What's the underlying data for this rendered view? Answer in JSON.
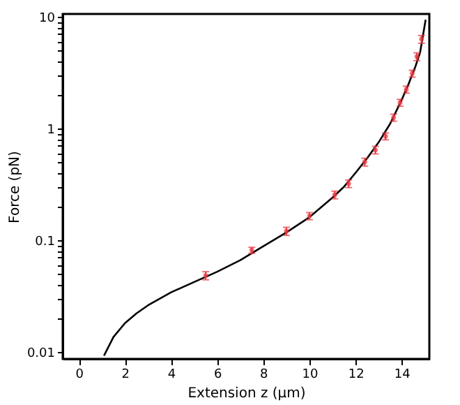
{
  "chart_data": {
    "type": "scatter",
    "xlabel": "Extension z (μm)",
    "ylabel": "Force (pN)",
    "log": "y",
    "grid": false,
    "xlim": [
      -0.7,
      15.2
    ],
    "xticks": [
      0,
      2,
      4,
      6,
      8,
      10,
      12,
      14
    ],
    "ylim": [
      0.0086,
      10.6
    ],
    "yticks": [
      {
        "value": 0.01,
        "label": "0.01"
      },
      {
        "value": 0.02,
        "label": null
      },
      {
        "value": 0.03,
        "label": null
      },
      {
        "value": 0.04,
        "label": null
      },
      {
        "value": 0.05,
        "label": null
      },
      {
        "value": 0.06,
        "label": null
      },
      {
        "value": 0.07,
        "label": null
      },
      {
        "value": 0.08,
        "label": null
      },
      {
        "value": 0.09,
        "label": null
      },
      {
        "value": 0.1,
        "label": "0.1"
      },
      {
        "value": 0.2,
        "label": null
      },
      {
        "value": 0.3,
        "label": null
      },
      {
        "value": 0.4,
        "label": null
      },
      {
        "value": 0.5,
        "label": null
      },
      {
        "value": 0.6,
        "label": null
      },
      {
        "value": 0.7,
        "label": null
      },
      {
        "value": 0.8,
        "label": null
      },
      {
        "value": 0.9,
        "label": null
      },
      {
        "value": 1,
        "label": "1"
      },
      {
        "value": 2,
        "label": null
      },
      {
        "value": 3,
        "label": null
      },
      {
        "value": 4,
        "label": null
      },
      {
        "value": 5,
        "label": null
      },
      {
        "value": 6,
        "label": null
      },
      {
        "value": 7,
        "label": null
      },
      {
        "value": 8,
        "label": null
      },
      {
        "value": 9,
        "label": null
      },
      {
        "value": 10,
        "label": "10"
      }
    ],
    "series": [
      {
        "type": "line",
        "color": "#000000",
        "marker": "none",
        "line_style": "solid",
        "x": [
          1.09,
          1.5,
          2,
          2.5,
          3,
          4,
          5,
          6,
          7,
          8,
          9,
          10,
          11,
          11.5,
          12,
          12.5,
          13,
          13.5,
          14,
          14.3,
          14.6,
          14.8,
          15.04
        ],
        "values": [
          0.0092,
          0.0135,
          0.018,
          0.022,
          0.026,
          0.034,
          0.042,
          0.052,
          0.066,
          0.088,
          0.117,
          0.16,
          0.24,
          0.3,
          0.4,
          0.54,
          0.75,
          1.1,
          1.8,
          2.5,
          3.6,
          4.8,
          9.4
        ]
      },
      {
        "type": "scatter",
        "color": "#e8363f",
        "marker": "circle",
        "x": [
          5.5,
          7.5,
          9.0,
          10.0,
          11.1,
          11.7,
          12.4,
          12.86,
          13.3,
          13.65,
          13.93,
          14.2,
          14.46,
          14.66,
          14.86
        ],
        "values": [
          0.048,
          0.081,
          0.12,
          0.164,
          0.254,
          0.32,
          0.5,
          0.64,
          0.85,
          1.25,
          1.7,
          2.23,
          3.1,
          4.4,
          6.3
        ],
        "errors": [
          0.004,
          0.005,
          0.01,
          0.012,
          0.02,
          0.025,
          0.04,
          0.05,
          0.06,
          0.09,
          0.12,
          0.16,
          0.22,
          0.35,
          0.5
        ]
      }
    ]
  }
}
